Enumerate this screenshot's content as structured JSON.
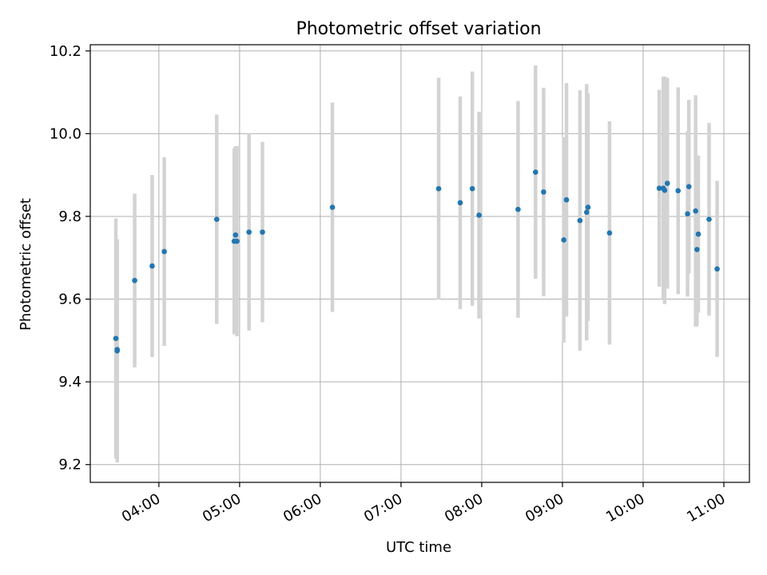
{
  "chart_data": {
    "type": "scatter",
    "title": "Photometric offset variation",
    "xlabel": "UTC time",
    "ylabel": "Photometric offset",
    "x_axis": "time (HH:MM UTC)",
    "xlim": [
      "03:09",
      "11:19"
    ],
    "ylim": [
      9.157,
      10.215
    ],
    "grid": true,
    "x_ticks": [
      "04:00",
      "05:00",
      "06:00",
      "07:00",
      "08:00",
      "09:00",
      "10:00",
      "11:00"
    ],
    "y_ticks": [
      9.2,
      9.4,
      9.6,
      9.8,
      10.0,
      10.2
    ],
    "y_tick_labels": [
      "9.2",
      "9.4",
      "9.6",
      "9.8",
      "10.0",
      "10.2"
    ],
    "colors": {
      "point": "#1f77b4",
      "errorbar": "#d3d3d3",
      "grid": "#b0b0b0"
    },
    "points": [
      {
        "x": "03:28",
        "y": 9.505,
        "yerr": 0.29
      },
      {
        "x": "03:29",
        "y": 9.478,
        "yerr": 0.265
      },
      {
        "x": "03:29",
        "y": 9.475,
        "yerr": 0.27
      },
      {
        "x": "03:42",
        "y": 9.645,
        "yerr": 0.21
      },
      {
        "x": "03:55",
        "y": 9.68,
        "yerr": 0.22
      },
      {
        "x": "04:04",
        "y": 9.715,
        "yerr": 0.228
      },
      {
        "x": "04:43",
        "y": 9.793,
        "yerr": 0.253
      },
      {
        "x": "04:56",
        "y": 9.74,
        "yerr": 0.225
      },
      {
        "x": "04:57",
        "y": 9.755,
        "yerr": 0.215
      },
      {
        "x": "04:58",
        "y": 9.74,
        "yerr": 0.23
      },
      {
        "x": "05:07",
        "y": 9.762,
        "yerr": 0.238
      },
      {
        "x": "05:17",
        "y": 9.762,
        "yerr": 0.218
      },
      {
        "x": "06:09",
        "y": 9.822,
        "yerr": 0.253
      },
      {
        "x": "07:28",
        "y": 9.867,
        "yerr": 0.268
      },
      {
        "x": "07:44",
        "y": 9.833,
        "yerr": 0.257
      },
      {
        "x": "07:53",
        "y": 9.867,
        "yerr": 0.283
      },
      {
        "x": "07:58",
        "y": 9.803,
        "yerr": 0.25
      },
      {
        "x": "08:27",
        "y": 9.817,
        "yerr": 0.262
      },
      {
        "x": "08:40",
        "y": 9.907,
        "yerr": 0.258
      },
      {
        "x": "08:46",
        "y": 9.859,
        "yerr": 0.252
      },
      {
        "x": "09:01",
        "y": 9.743,
        "yerr": 0.248
      },
      {
        "x": "09:03",
        "y": 9.84,
        "yerr": 0.282
      },
      {
        "x": "09:13",
        "y": 9.79,
        "yerr": 0.315
      },
      {
        "x": "09:18",
        "y": 9.81,
        "yerr": 0.31
      },
      {
        "x": "09:19",
        "y": 9.822,
        "yerr": 0.275
      },
      {
        "x": "09:35",
        "y": 9.76,
        "yerr": 0.27
      },
      {
        "x": "10:12",
        "y": 9.868,
        "yerr": 0.238
      },
      {
        "x": "10:15",
        "y": 9.868,
        "yerr": 0.27
      },
      {
        "x": "10:16",
        "y": 9.863,
        "yerr": 0.275
      },
      {
        "x": "10:18",
        "y": 9.88,
        "yerr": 0.255
      },
      {
        "x": "10:26",
        "y": 9.862,
        "yerr": 0.25
      },
      {
        "x": "10:33",
        "y": 9.806,
        "yerr": 0.2
      },
      {
        "x": "10:34",
        "y": 9.872,
        "yerr": 0.21
      },
      {
        "x": "10:39",
        "y": 9.813,
        "yerr": 0.28
      },
      {
        "x": "10:40",
        "y": 9.72,
        "yerr": 0.185
      },
      {
        "x": "10:41",
        "y": 9.757,
        "yerr": 0.19
      },
      {
        "x": "10:49",
        "y": 9.793,
        "yerr": 0.233
      },
      {
        "x": "10:55",
        "y": 9.673,
        "yerr": 0.213
      }
    ]
  }
}
